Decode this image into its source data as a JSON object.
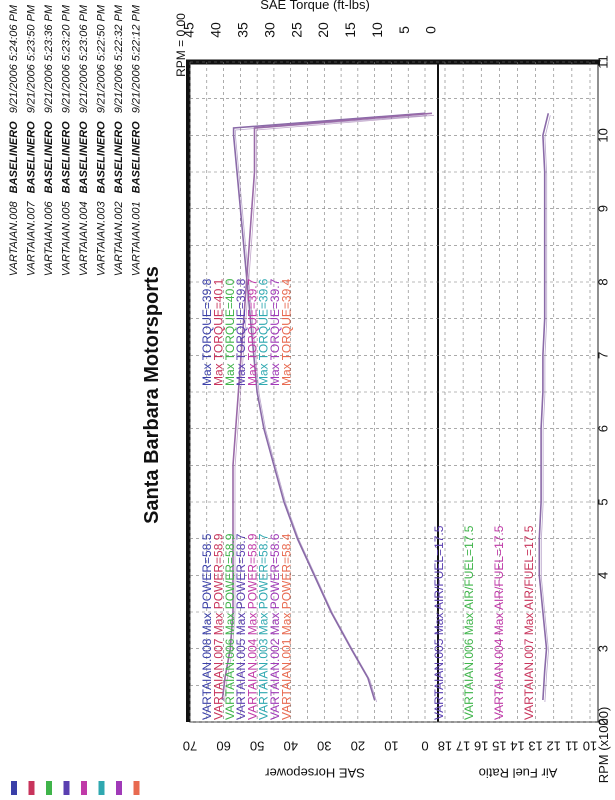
{
  "chart_data": {
    "type": "line",
    "orientation": "rotated-90-cw",
    "title": "Santa Barbara Motorsports",
    "xlabel": "RPM (x1000)",
    "xlim": [
      2,
      11
    ],
    "x_ticks": [
      "2",
      "3",
      "4",
      "5",
      "6",
      "7",
      "8",
      "9",
      "10",
      "11"
    ],
    "rpm_marker": "RPM = 0.00",
    "top_axis": {
      "label": "SAE Torque (ft-lbs)",
      "lim": [
        0,
        45
      ],
      "ticks": [
        "0",
        "5",
        "10",
        "15",
        "20",
        "25",
        "30",
        "35",
        "40",
        "45"
      ]
    },
    "panels": [
      {
        "name": "power-torque",
        "ylabel": "SAE Horsepower",
        "ylim": [
          0,
          70
        ],
        "y_ticks": [
          "0",
          "10",
          "20",
          "30",
          "40",
          "50",
          "60",
          "70"
        ]
      },
      {
        "name": "air-fuel",
        "ylabel": "Air Fuel Ratio",
        "ylim": [
          10,
          18
        ],
        "y_ticks": [
          "10",
          "11",
          "12",
          "13",
          "14",
          "15",
          "16",
          "17",
          "18"
        ]
      }
    ],
    "runs": [
      {
        "id": "VARTAIAN.008",
        "name": "BASELINERO",
        "timestamp": "9/21/2006 5:24:06 PM",
        "color": "#3a3fa8",
        "max_power": "58.5",
        "max_torque": "39.8"
      },
      {
        "id": "VARTAIAN.007",
        "name": "BASELINERO",
        "timestamp": "9/21/2006 5:23:50 PM",
        "color": "#c8345c",
        "max_power": "58.9",
        "max_torque": "40.1"
      },
      {
        "id": "VARTAIAN.006",
        "name": "BASELINERO",
        "timestamp": "9/21/2006 5:23:36 PM",
        "color": "#3fb44a",
        "max_power": "58.9",
        "max_torque": "40.0"
      },
      {
        "id": "VARTAIAN.005",
        "name": "BASELINERO",
        "timestamp": "9/21/2006 5:23:20 PM",
        "color": "#5a3fb0",
        "max_power": "58.7",
        "max_torque": "39.8"
      },
      {
        "id": "VARTAIAN.004",
        "name": "BASELINERO",
        "timestamp": "9/21/2006 5:23:06 PM",
        "color": "#c03aa8",
        "max_power": "58.9",
        "max_torque": "39.7"
      },
      {
        "id": "VARTAIAN.003",
        "name": "BASELINERO",
        "timestamp": "9/21/2006 5:22:50 PM",
        "color": "#2fa8b0",
        "max_power": "58.7",
        "max_torque": "39.6"
      },
      {
        "id": "VARTAIAN.002",
        "name": "BASELINERO",
        "timestamp": "9/21/2006 5:22:32 PM",
        "color": "#a03ab8",
        "max_power": "58.6",
        "max_torque": "39.7"
      },
      {
        "id": "VARTAIAN.001",
        "name": "BASELINERO",
        "timestamp": "9/21/2006 5:22:12 PM",
        "color": "#e86a50",
        "max_power": "58.4",
        "max_torque": "39.4"
      }
    ],
    "afr_labels": [
      {
        "id": "VARTAIAN.005",
        "color": "#5a3fb0",
        "max_afr": "17.5"
      },
      {
        "id": "VARTAIAN.006",
        "color": "#3fb44a",
        "max_afr": "17.5"
      },
      {
        "id": "VARTAIAN.004",
        "color": "#c03aa8",
        "max_afr": "17.5"
      },
      {
        "id": "VARTAIAN.007",
        "color": "#c8345c",
        "max_afr": "17.5"
      }
    ],
    "label_texts": {
      "power_prefix": "Max POWER=",
      "torque_prefix": "Max TORQUE=",
      "afr_prefix": "Max AIR/FUEL="
    },
    "series": [
      {
        "name": "SAE Horsepower",
        "axis": "horsepower",
        "color": "#8a6aa8",
        "x": [
          2.3,
          2.6,
          3.0,
          3.5,
          4.0,
          4.5,
          5.0,
          5.5,
          6.0,
          6.5,
          7.0,
          7.5,
          8.0,
          8.5,
          9.0,
          9.5,
          10.0,
          10.1,
          10.3
        ],
        "y": [
          15,
          17,
          22,
          28,
          33,
          38,
          42,
          45,
          48,
          50,
          51,
          52,
          53,
          54,
          55,
          56,
          57,
          57,
          0
        ]
      },
      {
        "name": "SAE Torque",
        "axis": "torque",
        "color": "#9a6aa8",
        "x": [
          2.3,
          2.6,
          3.0,
          3.5,
          4.0,
          4.5,
          5.0,
          5.5,
          6.0,
          6.5,
          7.0,
          7.5,
          8.0,
          8.5,
          9.0,
          9.5,
          10.0,
          10.1,
          10.3
        ],
        "y": [
          39,
          38.5,
          37.5,
          37,
          37,
          37,
          37,
          37,
          36.5,
          36,
          35.5,
          35,
          34.5,
          34,
          33.5,
          33,
          33,
          33,
          0
        ]
      },
      {
        "name": "Air Fuel Ratio",
        "axis": "afr",
        "color": "#8a6aa8",
        "x": [
          2.3,
          2.7,
          3.0,
          3.5,
          4.0,
          4.5,
          5.0,
          5.5,
          6.0,
          6.5,
          7.0,
          7.5,
          8.0,
          8.5,
          9.0,
          9.5,
          10.0,
          10.3
        ],
        "y": [
          12.6,
          12.5,
          12.4,
          12.6,
          12.8,
          12.8,
          12.7,
          12.7,
          12.7,
          12.6,
          12.6,
          12.5,
          12.5,
          12.5,
          12.5,
          12.5,
          12.6,
          12.3
        ]
      }
    ]
  }
}
